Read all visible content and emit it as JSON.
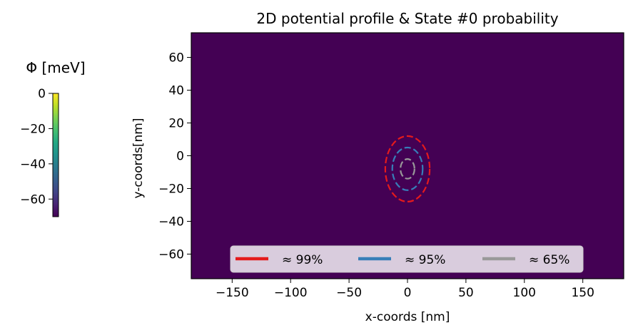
{
  "chart_data": {
    "type": "heatmap",
    "title": "2D potential profile & State #0 probability",
    "xlabel": "x-coords [nm]",
    "ylabel": "y-coords[nm]",
    "xlim": [
      -185,
      185
    ],
    "ylim": [
      -75,
      75
    ],
    "xticks": [
      -150,
      -100,
      -50,
      0,
      50,
      100,
      150
    ],
    "yticks": [
      -60,
      -40,
      -20,
      0,
      20,
      40,
      60
    ],
    "xtick_labels": [
      "−150",
      "−100",
      "−50",
      "0",
      "50",
      "100",
      "150"
    ],
    "ytick_labels": [
      "−60",
      "−40",
      "−20",
      "0",
      "20",
      "40",
      "60"
    ],
    "background_value": -70,
    "colormap": "viridis",
    "contours": [
      {
        "name": "≈ 99%",
        "color": "#e41a1c",
        "cx": 0,
        "cy": -8,
        "rx": 19,
        "ry": 20
      },
      {
        "name": "≈ 95%",
        "color": "#377eb8",
        "cx": 0,
        "cy": -8,
        "rx": 13,
        "ry": 13
      },
      {
        "name": "≈ 65%",
        "color": "#999999",
        "cx": 0,
        "cy": -8,
        "rx": 6,
        "ry": 6
      }
    ],
    "legend": {
      "position": "lower center",
      "ncol": 3
    },
    "colorbar": {
      "title": "Φ [meV]",
      "range": [
        -70,
        0
      ],
      "ticks": [
        0,
        -20,
        -40,
        -60
      ],
      "tick_labels": [
        "0",
        "−20",
        "−40",
        "−60"
      ]
    }
  }
}
